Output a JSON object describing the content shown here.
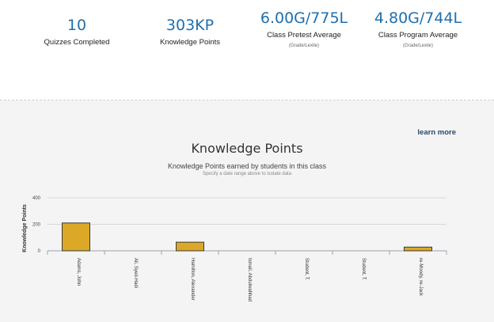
{
  "stats": [
    {
      "value": "10",
      "label": "Quizzes Completed",
      "sub": ""
    },
    {
      "value": "303KP",
      "label": "Knowledge Points",
      "sub": ""
    },
    {
      "value": "6.00G/775L",
      "label": "Class Pretest Average",
      "sub": "(Grade/Lexile)"
    },
    {
      "value": "4.80G/744L",
      "label": "Class Program Average",
      "sub": "(Grade/Lexile)"
    }
  ],
  "learn_more": "learn more",
  "colors": {
    "bar": "#dba927",
    "bar_border": "#3a3a3a",
    "accent": "#1f6fae"
  },
  "chart_data": {
    "type": "bar",
    "title": "Knowledge Points",
    "subtitle": "Knowledge Points earned by students in this class",
    "note": "Specify a date range above to isolate data",
    "xlabel": "",
    "ylabel": "Knowledge Points",
    "ylim": [
      0,
      400
    ],
    "yticks": [
      "0",
      "200",
      "400"
    ],
    "grid": true,
    "categories": [
      "Adams, John",
      "Ali, Syed-Hadi",
      "Hamilton, Alexander",
      "Ismail, Abdulwahhad",
      "Student, T.",
      "Student, T.",
      "re-Moody, re-Jack"
    ],
    "values": [
      210,
      0,
      65,
      0,
      0,
      0,
      28
    ]
  }
}
